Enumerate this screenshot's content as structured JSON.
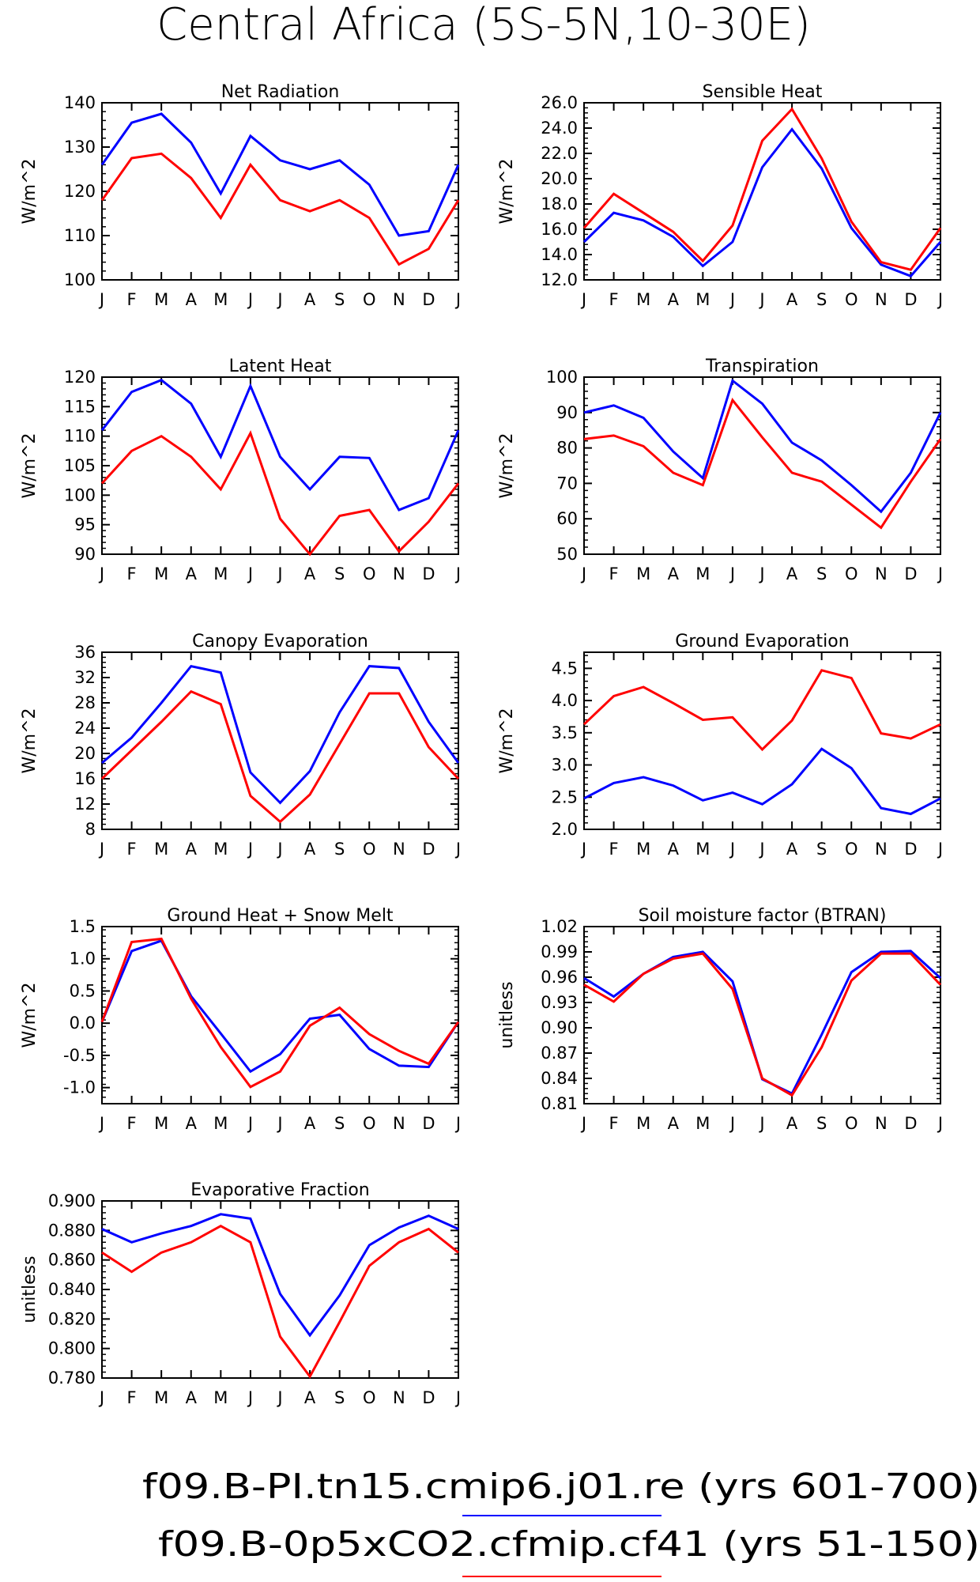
{
  "page_title": "Central Africa (5S-5N,10-30E)",
  "colors": {
    "blue": "#0000ff",
    "red": "#ff0000",
    "axis": "#000000"
  },
  "legend": {
    "entries": [
      {
        "label": "f09.B-PI.tn15.cmip6.j01.re (yrs 601-700)",
        "color": "#0000ff"
      },
      {
        "label": "f09.B-0p5xCO2.cfmip.cf41 (yrs 51-150)",
        "color": "#ff0000"
      }
    ]
  },
  "chart_data": [
    {
      "type": "line",
      "title": "Net Radiation",
      "ylabel": "W/m^2",
      "categories": [
        "J",
        "F",
        "M",
        "A",
        "M",
        "J",
        "J",
        "A",
        "S",
        "O",
        "N",
        "D",
        "J"
      ],
      "ylim": [
        100,
        140
      ],
      "yticks": [
        100,
        110,
        120,
        130,
        140
      ],
      "ytick_labels": [
        "100",
        "110",
        "120",
        "130",
        "140"
      ],
      "series": [
        {
          "color": "#0000ff",
          "values": [
            126,
            135.5,
            137.5,
            131,
            119.5,
            132.5,
            127,
            125,
            127,
            121.5,
            110,
            111,
            126
          ]
        },
        {
          "color": "#ff0000",
          "values": [
            118,
            127.5,
            128.5,
            123,
            114,
            126,
            118,
            115.5,
            118,
            114,
            103.5,
            107,
            118
          ]
        }
      ]
    },
    {
      "type": "line",
      "title": "Sensible Heat",
      "ylabel": "W/m^2",
      "categories": [
        "J",
        "F",
        "M",
        "A",
        "M",
        "J",
        "J",
        "A",
        "S",
        "O",
        "N",
        "D",
        "J"
      ],
      "ylim": [
        12,
        26
      ],
      "yticks": [
        12,
        14,
        16,
        18,
        20,
        22,
        24,
        26
      ],
      "ytick_labels": [
        "12.0",
        "14.0",
        "16.0",
        "18.0",
        "20.0",
        "22.0",
        "24.0",
        "26.0"
      ],
      "series": [
        {
          "color": "#0000ff",
          "values": [
            15,
            17.3,
            16.7,
            15.4,
            13.1,
            15,
            20.9,
            23.9,
            20.8,
            16.1,
            13.2,
            12.3,
            15
          ]
        },
        {
          "color": "#ff0000",
          "values": [
            16.1,
            18.8,
            17.3,
            15.8,
            13.5,
            16.3,
            23,
            25.5,
            21.6,
            16.6,
            13.4,
            12.8,
            16.1
          ]
        }
      ]
    },
    {
      "type": "line",
      "title": "Latent Heat",
      "ylabel": "W/m^2",
      "categories": [
        "J",
        "F",
        "M",
        "A",
        "M",
        "J",
        "J",
        "A",
        "S",
        "O",
        "N",
        "D",
        "J"
      ],
      "ylim": [
        90,
        120
      ],
      "yticks": [
        90,
        95,
        100,
        105,
        110,
        115,
        120
      ],
      "ytick_labels": [
        "90",
        "95",
        "100",
        "105",
        "110",
        "115",
        "120"
      ],
      "series": [
        {
          "color": "#0000ff",
          "values": [
            111,
            117.5,
            119.5,
            115.5,
            106.5,
            118.5,
            106.5,
            101,
            106.5,
            106.3,
            97.5,
            99.5,
            111
          ]
        },
        {
          "color": "#ff0000",
          "values": [
            102,
            107.5,
            110,
            106.5,
            101,
            110.5,
            96,
            90,
            96.5,
            97.5,
            90.5,
            95.5,
            102
          ]
        }
      ]
    },
    {
      "type": "line",
      "title": "Transpiration",
      "ylabel": "W/m^2",
      "categories": [
        "J",
        "F",
        "M",
        "A",
        "M",
        "J",
        "J",
        "A",
        "S",
        "O",
        "N",
        "D",
        "J"
      ],
      "ylim": [
        50,
        100
      ],
      "yticks": [
        50,
        60,
        70,
        80,
        90,
        100
      ],
      "ytick_labels": [
        "50",
        "60",
        "70",
        "80",
        "90",
        "100"
      ],
      "series": [
        {
          "color": "#0000ff",
          "values": [
            90,
            92,
            88.5,
            79,
            71.5,
            99,
            92.5,
            81.5,
            76.5,
            69.5,
            62,
            73,
            90
          ]
        },
        {
          "color": "#ff0000",
          "values": [
            82.5,
            83.5,
            80.5,
            73,
            69.5,
            93.5,
            83,
            73,
            70.5,
            64,
            57.5,
            70.5,
            82.5
          ]
        }
      ]
    },
    {
      "type": "line",
      "title": "Canopy Evaporation",
      "ylabel": "W/m^2",
      "categories": [
        "J",
        "F",
        "M",
        "A",
        "M",
        "J",
        "J",
        "A",
        "S",
        "O",
        "N",
        "D",
        "J"
      ],
      "ylim": [
        8,
        36
      ],
      "yticks": [
        8,
        12,
        16,
        20,
        24,
        28,
        32,
        36
      ],
      "ytick_labels": [
        "8",
        "12",
        "16",
        "20",
        "24",
        "28",
        "32",
        "36"
      ],
      "series": [
        {
          "color": "#0000ff",
          "values": [
            18.5,
            22.5,
            28,
            33.8,
            32.8,
            17,
            12.2,
            17.2,
            26.5,
            33.8,
            33.5,
            25,
            18.5
          ]
        },
        {
          "color": "#ff0000",
          "values": [
            16,
            20.5,
            25,
            29.8,
            27.8,
            13.3,
            9.2,
            13.5,
            21.5,
            29.5,
            29.5,
            21,
            16
          ]
        }
      ]
    },
    {
      "type": "line",
      "title": "Ground Evaporation",
      "ylabel": "W/m^2",
      "categories": [
        "J",
        "F",
        "M",
        "A",
        "M",
        "J",
        "J",
        "A",
        "S",
        "O",
        "N",
        "D",
        "J"
      ],
      "ylim": [
        2,
        4.75
      ],
      "yticks": [
        2,
        2.5,
        3,
        3.5,
        4,
        4.5
      ],
      "ytick_labels": [
        "2.0",
        "2.5",
        "3.0",
        "3.5",
        "4.0",
        "4.5"
      ],
      "series": [
        {
          "color": "#0000ff",
          "values": [
            2.48,
            2.72,
            2.81,
            2.68,
            2.45,
            2.57,
            2.39,
            2.7,
            3.25,
            2.95,
            2.33,
            2.24,
            2.48
          ]
        },
        {
          "color": "#ff0000",
          "values": [
            3.63,
            4.07,
            4.21,
            3.96,
            3.7,
            3.74,
            3.24,
            3.69,
            4.47,
            4.35,
            3.49,
            3.41,
            3.63
          ]
        }
      ]
    },
    {
      "type": "line",
      "title": "Ground Heat + Snow Melt",
      "ylabel": "W/m^2",
      "categories": [
        "J",
        "F",
        "M",
        "A",
        "M",
        "J",
        "J",
        "A",
        "S",
        "O",
        "N",
        "D",
        "J"
      ],
      "ylim": [
        -1.25,
        1.5
      ],
      "yticks": [
        -1,
        -0.5,
        0,
        0.5,
        1,
        1.5
      ],
      "ytick_labels": [
        "-1.0",
        "-0.5",
        "0.0",
        "0.5",
        "1.0",
        "1.5"
      ],
      "series": [
        {
          "color": "#0000ff",
          "values": [
            0.02,
            1.12,
            1.28,
            0.42,
            -0.16,
            -0.75,
            -0.48,
            0.07,
            0.13,
            -0.4,
            -0.66,
            -0.68,
            0.02
          ]
        },
        {
          "color": "#ff0000",
          "values": [
            0.02,
            1.26,
            1.31,
            0.38,
            -0.37,
            -0.99,
            -0.75,
            -0.04,
            0.24,
            -0.17,
            -0.43,
            -0.63,
            0.02
          ]
        }
      ]
    },
    {
      "type": "line",
      "title": "Soil moisture factor (BTRAN)",
      "ylabel": "unitless",
      "categories": [
        "J",
        "F",
        "M",
        "A",
        "M",
        "J",
        "J",
        "A",
        "S",
        "O",
        "N",
        "D",
        "J"
      ],
      "ylim": [
        0.81,
        1.02
      ],
      "yticks": [
        0.81,
        0.84,
        0.87,
        0.9,
        0.93,
        0.96,
        0.99,
        1.02
      ],
      "ytick_labels": [
        "0.81",
        "0.84",
        "0.87",
        "0.90",
        "0.93",
        "0.96",
        "0.99",
        "1.02"
      ],
      "series": [
        {
          "color": "#0000ff",
          "values": [
            0.959,
            0.937,
            0.964,
            0.984,
            0.99,
            0.955,
            0.839,
            0.822,
            0.892,
            0.966,
            0.99,
            0.991,
            0.959
          ]
        },
        {
          "color": "#ff0000",
          "values": [
            0.951,
            0.931,
            0.964,
            0.982,
            0.988,
            0.946,
            0.84,
            0.82,
            0.877,
            0.956,
            0.988,
            0.988,
            0.951
          ]
        }
      ]
    },
    {
      "type": "line",
      "title": "Evaporative Fraction",
      "ylabel": "unitless",
      "categories": [
        "J",
        "F",
        "M",
        "A",
        "M",
        "J",
        "J",
        "A",
        "S",
        "O",
        "N",
        "D",
        "J"
      ],
      "ylim": [
        0.78,
        0.9
      ],
      "yticks": [
        0.78,
        0.8,
        0.82,
        0.84,
        0.86,
        0.88,
        0.9
      ],
      "ytick_labels": [
        "0.780",
        "0.800",
        "0.820",
        "0.840",
        "0.860",
        "0.880",
        "0.900"
      ],
      "series": [
        {
          "color": "#0000ff",
          "values": [
            0.881,
            0.872,
            0.878,
            0.883,
            0.891,
            0.888,
            0.837,
            0.809,
            0.836,
            0.87,
            0.882,
            0.89,
            0.881
          ]
        },
        {
          "color": "#ff0000",
          "values": [
            0.865,
            0.852,
            0.865,
            0.872,
            0.883,
            0.872,
            0.808,
            0.781,
            0.818,
            0.856,
            0.872,
            0.881,
            0.865
          ]
        }
      ]
    }
  ]
}
